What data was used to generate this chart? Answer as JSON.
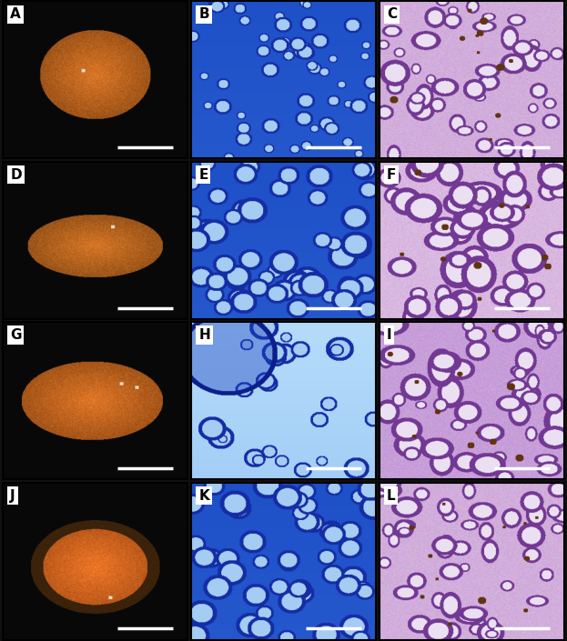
{
  "figsize": [
    6.23,
    7.05
  ],
  "dpi": 100,
  "nrows": 4,
  "ncols": 3,
  "labels": [
    "A",
    "B",
    "C",
    "D",
    "E",
    "F",
    "G",
    "H",
    "I",
    "J",
    "K",
    "L"
  ],
  "label_bg": "#ffffff",
  "label_color": "#000000",
  "label_fontsize": 11,
  "border_color": "#000000",
  "border_linewidth": 1.5,
  "hspace": 0.02,
  "wspace": 0.02,
  "scale_bar_color": "#ffffff"
}
